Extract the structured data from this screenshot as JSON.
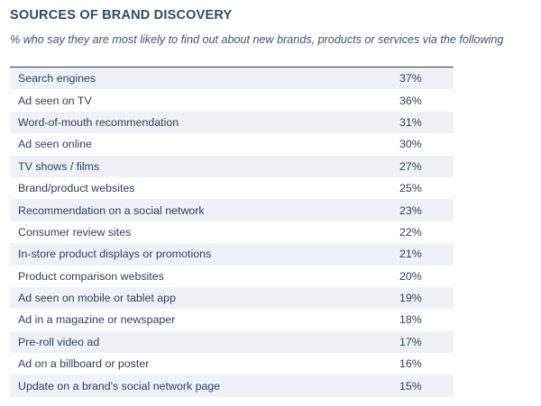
{
  "title": "SOURCES OF BRAND DISCOVERY",
  "subtitle": "% who say they are most likely to find out about new brands, products or services via the following",
  "chart_data": {
    "type": "table",
    "title": "SOURCES OF BRAND DISCOVERY",
    "subtitle": "% who say they are most likely to find out about new brands, products or services via the following",
    "rows": [
      {
        "label": "Search engines",
        "value": "37%"
      },
      {
        "label": "Ad seen on TV",
        "value": "36%"
      },
      {
        "label": "Word-of-mouth recommendation",
        "value": "31%"
      },
      {
        "label": "Ad seen online",
        "value": "30%"
      },
      {
        "label": "TV shows / films",
        "value": "27%"
      },
      {
        "label": "Brand/product websites",
        "value": "25%"
      },
      {
        "label": "Recommendation on a social network",
        "value": "23%"
      },
      {
        "label": "Consumer review sites",
        "value": "22%"
      },
      {
        "label": "In-store product displays or promotions",
        "value": "21%"
      },
      {
        "label": "Product comparison websites",
        "value": "20%"
      },
      {
        "label": "Ad seen on mobile or tablet app",
        "value": "19%"
      },
      {
        "label": "Ad in a magazine or newspaper",
        "value": "18%"
      },
      {
        "label": "Pre-roll video ad",
        "value": "17%"
      },
      {
        "label": "Ad on a billboard or poster",
        "value": "16%"
      },
      {
        "label": "Update on a brand's social network page",
        "value": "15%"
      }
    ]
  }
}
